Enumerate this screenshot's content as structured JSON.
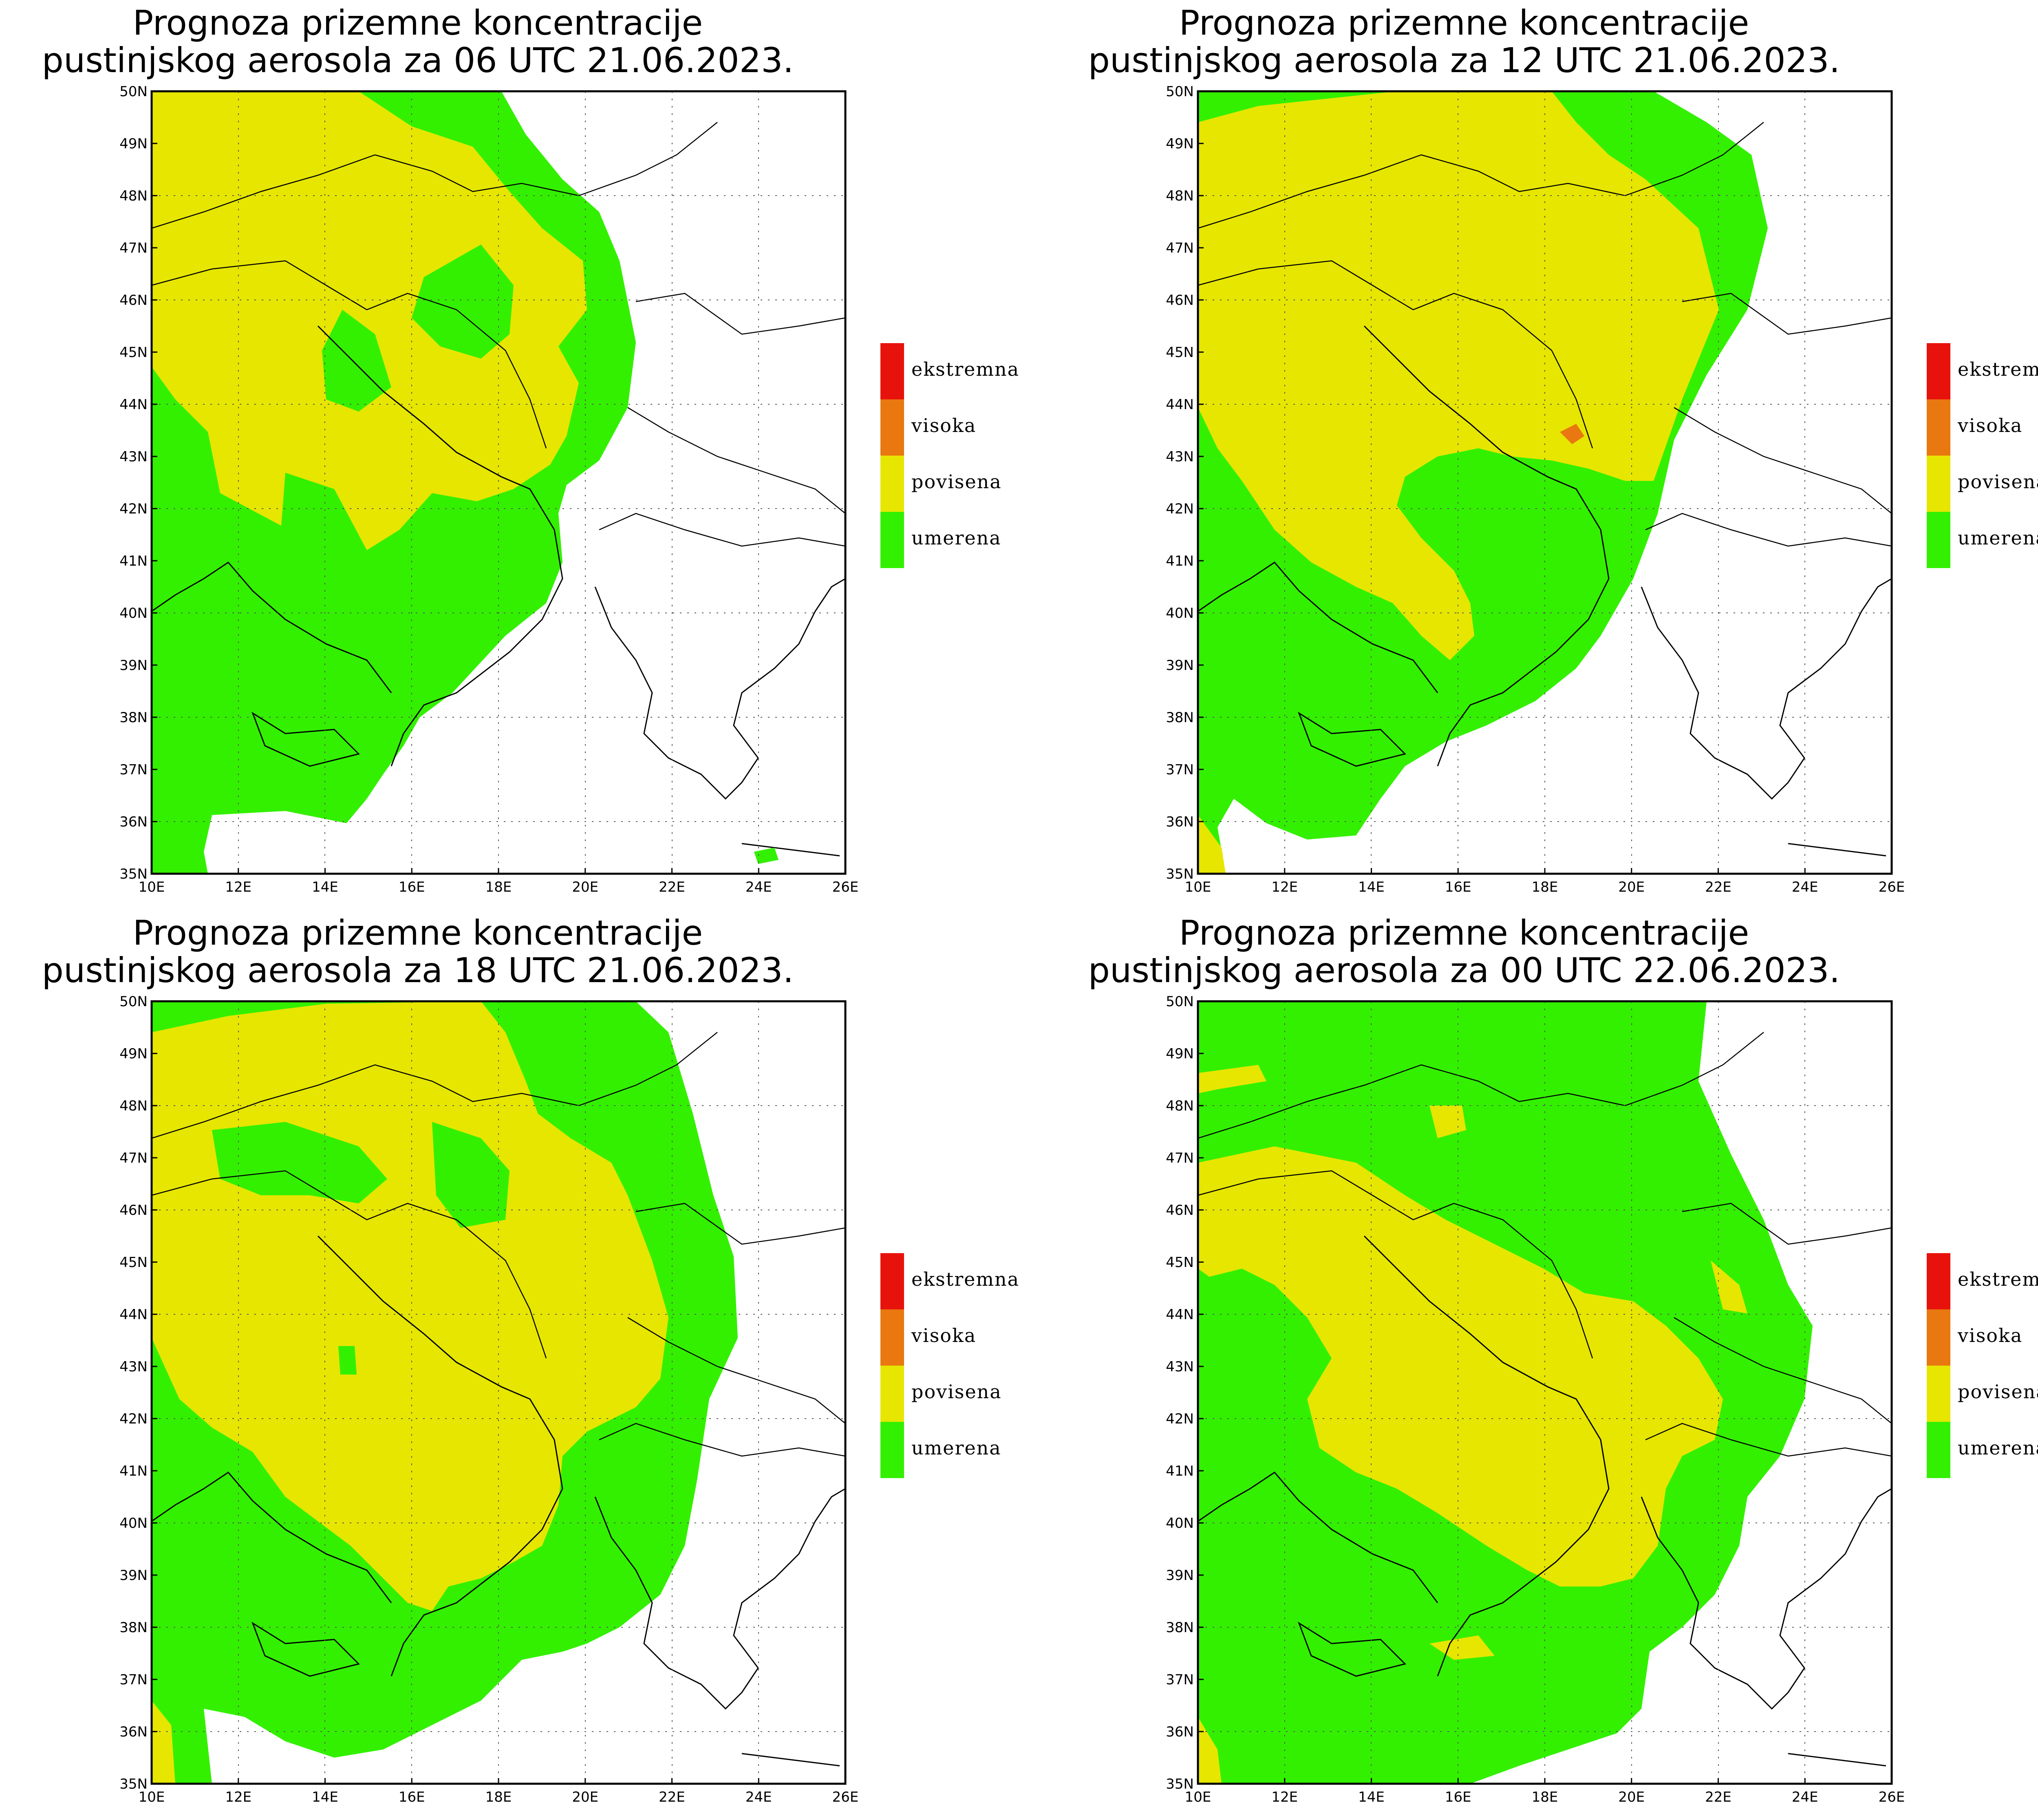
{
  "panels": [
    {
      "title_line1": "Prognoza prizemne koncentracije",
      "title_line2": "pustinjskog aerosola za 06 UTC 21.06.2023."
    },
    {
      "title_line1": "Prognoza prizemne koncentracije",
      "title_line2": "pustinjskog aerosola za 12 UTC 21.06.2023."
    },
    {
      "title_line1": "Prognoza prizemne koncentracije",
      "title_line2": "pustinjskog aerosola za 18 UTC 21.06.2023."
    },
    {
      "title_line1": "Prognoza prizemne koncentracije",
      "title_line2": "pustinjskog aerosola za 00 UTC 22.06.2023."
    }
  ],
  "axes": {
    "lon_ticks": [
      "10E",
      "12E",
      "14E",
      "16E",
      "18E",
      "20E",
      "22E",
      "24E",
      "26E"
    ],
    "lat_ticks": [
      "35N",
      "36N",
      "37N",
      "38N",
      "39N",
      "40N",
      "41N",
      "42N",
      "43N",
      "44N",
      "45N",
      "46N",
      "47N",
      "48N",
      "49N",
      "50N"
    ],
    "lon_range": [
      10,
      26
    ],
    "lat_range": [
      35,
      50
    ]
  },
  "legend": [
    {
      "label": "ekstremna",
      "color": "#e8120c"
    },
    {
      "label": "visoka",
      "color": "#e8780f"
    },
    {
      "label": "povisena",
      "color": "#e6e600"
    },
    {
      "label": "umerena",
      "color": "#33f000"
    }
  ]
}
